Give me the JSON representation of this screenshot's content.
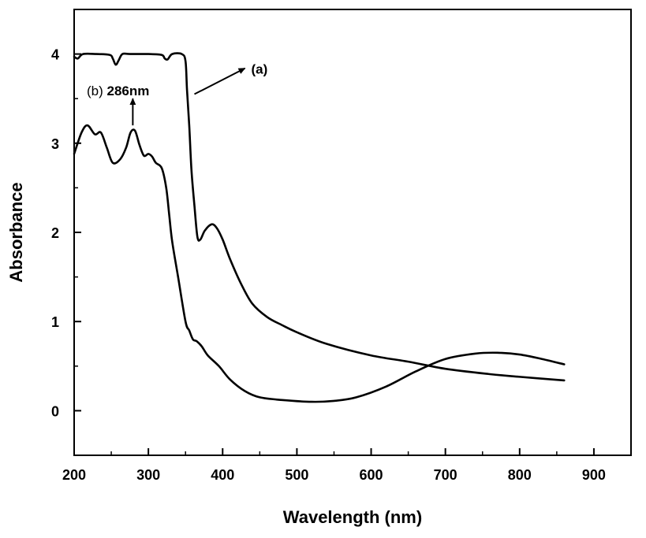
{
  "chart_data": {
    "type": "line",
    "title": "",
    "xlabel": "Wavelength (nm)",
    "ylabel": "Absorbance",
    "xlim": [
      200,
      950
    ],
    "ylim": [
      -0.5,
      4.5
    ],
    "grid": false,
    "x_ticks": [
      200,
      300,
      400,
      500,
      600,
      700,
      800,
      900
    ],
    "x_tick_labels": [
      "200",
      "300",
      "400",
      "500",
      "600",
      "700",
      "800",
      "900"
    ],
    "y_ticks": [
      0,
      1,
      2,
      3,
      4
    ],
    "y_tick_labels": [
      "0",
      "1",
      "2",
      "3",
      "4"
    ],
    "series": [
      {
        "name": "(a)",
        "x": [
          200,
          205,
          212,
          230,
          248,
          252,
          256,
          260,
          265,
          275,
          300,
          318,
          322,
          326,
          332,
          345,
          350,
          352,
          355,
          358,
          362,
          366,
          370,
          376,
          385,
          392,
          400,
          410,
          425,
          440,
          460,
          480,
          500,
          540,
          600,
          650,
          700,
          760,
          800,
          860
        ],
        "y": [
          3.97,
          3.95,
          4.0,
          4.0,
          3.99,
          3.95,
          3.88,
          3.93,
          4.0,
          4.0,
          4.0,
          3.99,
          3.95,
          3.94,
          4.0,
          4.0,
          3.92,
          3.6,
          3.2,
          2.7,
          2.3,
          1.95,
          1.92,
          2.02,
          2.09,
          2.05,
          1.92,
          1.7,
          1.42,
          1.2,
          1.05,
          0.96,
          0.88,
          0.75,
          0.62,
          0.55,
          0.47,
          0.41,
          0.38,
          0.34
        ]
      },
      {
        "name": "(b)",
        "x": [
          200,
          210,
          218,
          228,
          236,
          244,
          252,
          262,
          270,
          276,
          282,
          288,
          294,
          300,
          305,
          310,
          318,
          324,
          328,
          332,
          340,
          350,
          355,
          360,
          365,
          372,
          380,
          395,
          410,
          430,
          450,
          480,
          520,
          550,
          580,
          620,
          660,
          700,
          740,
          770,
          800,
          830,
          860
        ],
        "y": [
          2.88,
          3.12,
          3.2,
          3.1,
          3.12,
          2.95,
          2.78,
          2.82,
          2.95,
          3.12,
          3.14,
          2.98,
          2.86,
          2.88,
          2.85,
          2.78,
          2.72,
          2.5,
          2.2,
          1.9,
          1.5,
          1.0,
          0.9,
          0.8,
          0.78,
          0.72,
          0.62,
          0.5,
          0.35,
          0.22,
          0.15,
          0.12,
          0.1,
          0.11,
          0.15,
          0.27,
          0.44,
          0.58,
          0.64,
          0.65,
          0.63,
          0.58,
          0.52
        ]
      }
    ],
    "annotations": [
      {
        "id": "a",
        "label": "(a)",
        "arrow_from": [
          362,
          3.55
        ],
        "arrow_to": [
          430,
          3.84
        ]
      },
      {
        "id": "b",
        "label_prefix": "(b)",
        "label_value": "286nm",
        "peak_x": 286,
        "arrow_from": [
          279,
          3.2
        ],
        "arrow_to": [
          279,
          3.5
        ]
      }
    ]
  }
}
